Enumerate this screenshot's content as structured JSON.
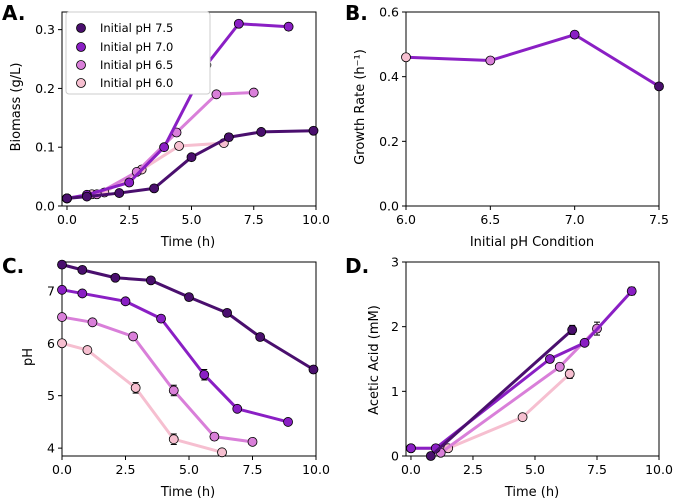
{
  "colors": {
    "ph75": "#4a0f6e",
    "ph70": "#8a1fc4",
    "ph65": "#d97fd9",
    "ph60": "#f6bfd0",
    "marker_edge": "#000000"
  },
  "chart_data": [
    {
      "panel": "A.",
      "type": "line",
      "xlabel": "Time (h)",
      "ylabel": "Biomass (g/L)",
      "xlim": [
        -0.2,
        10
      ],
      "ylim": [
        0,
        0.33
      ],
      "xticks": [
        "0.0",
        "2.5",
        "5.0",
        "7.5",
        "10.0"
      ],
      "yticks": [
        "0.0",
        "0.1",
        "0.2",
        "0.3"
      ],
      "legend_position": "top-left",
      "series": [
        {
          "name": "Initial pH 7.5",
          "color_key": "ph75",
          "x": [
            0.0,
            0.8,
            2.1,
            3.5,
            5.0,
            6.5,
            7.8,
            9.9
          ],
          "y": [
            0.013,
            0.016,
            0.022,
            0.03,
            0.083,
            0.117,
            0.126,
            0.128
          ],
          "err": [
            0,
            0,
            0,
            0,
            0.004,
            0.006,
            0,
            0
          ]
        },
        {
          "name": "Initial pH 7.0",
          "color_key": "ph70",
          "x": [
            0.0,
            0.8,
            2.5,
            3.9,
            5.6,
            6.9,
            8.9
          ],
          "y": [
            0.013,
            0.019,
            0.04,
            0.1,
            0.24,
            0.31,
            0.305
          ],
          "err": [
            0,
            0,
            0,
            0,
            0.012,
            0.005,
            0.006
          ]
        },
        {
          "name": "Initial pH 6.5",
          "color_key": "ph65",
          "x": [
            0.0,
            1.2,
            2.8,
            4.4,
            6.0,
            7.5
          ],
          "y": [
            0.013,
            0.02,
            0.058,
            0.125,
            0.19,
            0.193
          ],
          "err": [
            0,
            0,
            0,
            0,
            0,
            0
          ]
        },
        {
          "name": "Initial pH 6.0",
          "color_key": "ph60",
          "x": [
            0.0,
            1.0,
            1.5,
            3.0,
            4.5,
            6.3
          ],
          "y": [
            0.013,
            0.02,
            0.023,
            0.062,
            0.102,
            0.107
          ],
          "err": [
            0,
            0,
            0,
            0,
            0,
            0
          ]
        }
      ]
    },
    {
      "panel": "B.",
      "type": "line",
      "xlabel": "Initial pH Condition",
      "ylabel": "Growth Rate (h⁻¹)",
      "xlim": [
        6.0,
        7.5
      ],
      "ylim": [
        0,
        0.6
      ],
      "xticks": [
        "6.0",
        "6.5",
        "7.0",
        "7.5"
      ],
      "yticks": [
        "0.0",
        "0.2",
        "0.4",
        "0.6"
      ],
      "points": [
        {
          "x": 6.0,
          "y": 0.46,
          "err": 0,
          "color_key": "ph60"
        },
        {
          "x": 6.5,
          "y": 0.45,
          "err": 0,
          "color_key": "ph65"
        },
        {
          "x": 7.0,
          "y": 0.53,
          "err": 0.008,
          "color_key": "ph70"
        },
        {
          "x": 7.5,
          "y": 0.37,
          "err": 0,
          "color_key": "ph75"
        }
      ],
      "line_color_key": "ph70"
    },
    {
      "panel": "C.",
      "type": "line",
      "xlabel": "Time (h)",
      "ylabel": "pH",
      "xlim": [
        0,
        10
      ],
      "ylim": [
        3.85,
        7.55
      ],
      "xticks": [
        "0.0",
        "2.5",
        "5.0",
        "7.5",
        "10.0"
      ],
      "yticks": [
        "4",
        "5",
        "6",
        "7"
      ],
      "series": [
        {
          "name": "Initial pH 7.5",
          "color_key": "ph75",
          "x": [
            0.0,
            0.8,
            2.1,
            3.5,
            5.0,
            6.5,
            7.8,
            9.9
          ],
          "y": [
            7.5,
            7.4,
            7.25,
            7.2,
            6.88,
            6.58,
            6.12,
            5.5
          ],
          "err": [
            0,
            0,
            0,
            0,
            0,
            0,
            0,
            0
          ]
        },
        {
          "name": "Initial pH 7.0",
          "color_key": "ph70",
          "x": [
            0.0,
            0.8,
            2.5,
            3.9,
            5.6,
            6.9,
            8.9
          ],
          "y": [
            7.02,
            6.95,
            6.8,
            6.47,
            5.4,
            4.75,
            4.5
          ],
          "err": [
            0,
            0,
            0,
            0,
            0.1,
            0,
            0
          ]
        },
        {
          "name": "Initial pH 6.5",
          "color_key": "ph65",
          "x": [
            0.0,
            1.2,
            2.8,
            4.4,
            6.0,
            7.5
          ],
          "y": [
            6.5,
            6.4,
            6.13,
            5.1,
            4.22,
            4.12
          ],
          "err": [
            0,
            0,
            0,
            0.1,
            0,
            0
          ]
        },
        {
          "name": "Initial pH 6.0",
          "color_key": "ph60",
          "x": [
            0.0,
            1.0,
            2.9,
            4.4,
            6.3
          ],
          "y": [
            6.0,
            5.87,
            5.15,
            4.17,
            3.92
          ],
          "err": [
            0,
            0,
            0.1,
            0.1,
            0
          ]
        }
      ]
    },
    {
      "panel": "D.",
      "type": "line",
      "xlabel": "Time (h)",
      "ylabel": "Acetic Acid (mM)",
      "xlim": [
        -0.2,
        10
      ],
      "ylim": [
        0,
        3
      ],
      "xticks": [
        "0.0",
        "2.5",
        "5.0",
        "7.5",
        "10.0"
      ],
      "yticks": [
        "0",
        "1",
        "2",
        "3"
      ],
      "series": [
        {
          "name": "Initial pH 7.5",
          "color_key": "ph75",
          "x": [
            0.8,
            6.5
          ],
          "y": [
            0.0,
            1.95
          ],
          "err": [
            0,
            0.07
          ]
        },
        {
          "name": "Initial pH 7.0",
          "color_key": "ph70",
          "x": [
            0.0,
            1.0,
            5.6,
            7.0,
            8.9
          ],
          "y": [
            0.12,
            0.12,
            1.5,
            1.75,
            2.55
          ],
          "err": [
            0,
            0,
            0,
            0,
            0.06
          ]
        },
        {
          "name": "Initial pH 6.5",
          "color_key": "ph65",
          "x": [
            1.2,
            6.0,
            7.5
          ],
          "y": [
            0.05,
            1.38,
            1.97
          ],
          "err": [
            0,
            0,
            0.1
          ]
        },
        {
          "name": "Initial pH 6.0",
          "color_key": "ph60",
          "x": [
            0.0,
            1.5,
            4.5,
            6.4
          ],
          "y": [
            0.12,
            0.12,
            0.6,
            1.27
          ],
          "err": [
            0,
            0,
            0,
            0.07
          ]
        }
      ]
    }
  ]
}
